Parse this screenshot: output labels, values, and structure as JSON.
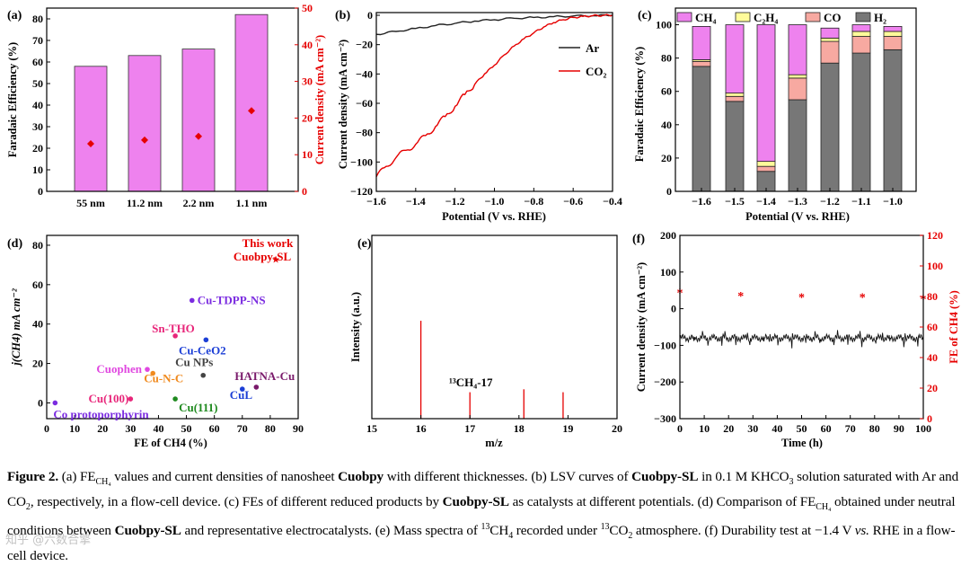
{
  "panel_labels": {
    "a": "(a)",
    "b": "(b)",
    "c": "(c)",
    "d": "(d)",
    "e": "(e)",
    "f": "(f)"
  },
  "chart_data": [
    {
      "id": "a",
      "type": "bar",
      "categories": [
        "55 nm",
        "11.2 nm",
        "2.2 nm",
        "1.1 nm"
      ],
      "series": [
        {
          "name": "Faradaic Efficiency (%)",
          "axis": "left",
          "values": [
            58,
            63,
            66,
            82
          ]
        },
        {
          "name": "Current density (mA cm^-2)",
          "axis": "right",
          "values": [
            13,
            14,
            15,
            22
          ]
        }
      ],
      "ylabel": "Faradaic Efficiency (%)",
      "y2label": "Current density (mA cm⁻²)",
      "ylim": [
        0,
        85
      ],
      "y2lim": [
        0,
        50
      ],
      "yticks": [
        "0",
        "10",
        "20",
        "30",
        "40",
        "50",
        "60",
        "70",
        "80"
      ],
      "y2ticks": [
        "0",
        "10",
        "20",
        "30",
        "40",
        "50"
      ],
      "colors": {
        "bar": "#ee82ee",
        "point": "#e60000",
        "right_axis": "#e60000"
      }
    },
    {
      "id": "b",
      "type": "line",
      "xlabel": "Potential (V vs. RHE)",
      "ylabel": "Current density (mA cm⁻²)",
      "xlim": [
        -1.6,
        -0.4
      ],
      "ylim": [
        -120,
        0
      ],
      "xticks": [
        "−1.6",
        "−1.4",
        "−1.2",
        "−1.0",
        "−0.8",
        "−0.6",
        "−0.4"
      ],
      "yticks": [
        "0",
        "−20",
        "−40",
        "−60",
        "−80",
        "−100",
        "−120"
      ],
      "series": [
        {
          "name": "Ar",
          "color": "#222222",
          "x": [
            -1.6,
            -1.5,
            -1.4,
            -1.3,
            -1.2,
            -1.1,
            -1.0,
            -0.9,
            -0.8,
            -0.7,
            -0.6,
            -0.5,
            -0.4
          ],
          "y": [
            -13,
            -11,
            -9,
            -7,
            -5.5,
            -4,
            -3,
            -2,
            -1.5,
            -1,
            -0.5,
            -0.3,
            0
          ]
        },
        {
          "name": "CO2",
          "color": "#e60000",
          "x": [
            -1.6,
            -1.55,
            -1.5,
            -1.45,
            -1.4,
            -1.35,
            -1.3,
            -1.25,
            -1.2,
            -1.15,
            -1.1,
            -1.05,
            -1.0,
            -0.95,
            -0.9,
            -0.85,
            -0.8,
            -0.75,
            -0.7,
            -0.65,
            -0.6,
            -0.55,
            -0.5,
            -0.45,
            -0.4
          ],
          "y": [
            -110,
            -103,
            -97,
            -92,
            -88,
            -82,
            -76,
            -69,
            -62,
            -54,
            -47,
            -40,
            -34,
            -27,
            -21,
            -16,
            -12,
            -8,
            -5,
            -3,
            -1.5,
            -0.8,
            -0.3,
            -0.1,
            0
          ]
        }
      ]
    },
    {
      "id": "c",
      "type": "bar",
      "stacked": true,
      "categories": [
        "−1.6",
        "−1.5",
        "−1.4",
        "−1.3",
        "−1.2",
        "−1.1",
        "−1.0"
      ],
      "xlabel": "Potential (V vs. RHE)",
      "ylabel": "Faradaic Efficiency (%)",
      "ylim": [
        0,
        110
      ],
      "yticks": [
        "0",
        "20",
        "40",
        "60",
        "80",
        "100"
      ],
      "legend": [
        "CH4",
        "C2H4",
        "CO",
        "H2"
      ],
      "series": [
        {
          "name": "H2",
          "color": "#777777",
          "values": [
            75,
            54,
            12,
            55,
            77,
            83,
            85
          ]
        },
        {
          "name": "CO",
          "color": "#f7a9a1",
          "values": [
            3,
            3,
            3,
            13,
            13,
            10,
            8
          ]
        },
        {
          "name": "C2H4",
          "color": "#fffb9a",
          "values": [
            1,
            2,
            3,
            2,
            2,
            3,
            3
          ]
        },
        {
          "name": "CH4",
          "color": "#ee82ee",
          "values": [
            20,
            41,
            82,
            30,
            6,
            4,
            3
          ]
        }
      ]
    },
    {
      "id": "d",
      "type": "scatter",
      "xlabel": "FE of CH4 (%)",
      "ylabel": "j(CH4) mA cm⁻²",
      "xlim": [
        0,
        90
      ],
      "ylim": [
        -8,
        85
      ],
      "xticks": [
        "0",
        "10",
        "20",
        "30",
        "40",
        "50",
        "60",
        "70",
        "80",
        "90"
      ],
      "yticks": [
        "0",
        "20",
        "40",
        "60",
        "80"
      ],
      "points": [
        {
          "label": "This work",
          "label2": "Cuobpy-SL",
          "x": 82,
          "y": 73,
          "color": "#e60000",
          "star": true
        },
        {
          "label": "Cu-TDPP-NS",
          "x": 52,
          "y": 52,
          "color": "#7b2ce0"
        },
        {
          "label": "Sn-THO",
          "x": 46,
          "y": 34,
          "color": "#e8267a"
        },
        {
          "label": "Cu-CeO2",
          "x": 57,
          "y": 32,
          "color": "#1c3fd6"
        },
        {
          "label": "Cuophen",
          "x": 36,
          "y": 17,
          "color": "#e048e0"
        },
        {
          "label": "Cu NPs",
          "x": 56,
          "y": 14,
          "color": "#444444"
        },
        {
          "label": "Cu-N-C",
          "x": 38,
          "y": 15,
          "color": "#f08a1e"
        },
        {
          "label": "HATNA-Cu",
          "x": 75,
          "y": 8,
          "color": "#7a1a6b"
        },
        {
          "label": "CuL",
          "x": 70,
          "y": 7,
          "color": "#1c3fd6"
        },
        {
          "label": "Cu(100)",
          "x": 30,
          "y": 2,
          "color": "#e8267a"
        },
        {
          "label": "Cu(111)",
          "x": 46,
          "y": 2,
          "color": "#1f8a1f"
        },
        {
          "label": "Co protoporphyrin",
          "x": 3,
          "y": 0,
          "color": "#7b2ce0"
        }
      ]
    },
    {
      "id": "e",
      "type": "bar",
      "xlabel": "m/z",
      "ylabel": "Intensity (a.u.)",
      "xlim": [
        15,
        20
      ],
      "xticks": [
        "15",
        "16",
        "17",
        "18",
        "19",
        "20"
      ],
      "x": [
        16,
        17,
        18.1,
        18.9
      ],
      "values": [
        100,
        27,
        30,
        27
      ],
      "annotation": "13CH4-17",
      "color": "#e60000"
    },
    {
      "id": "f",
      "type": "line",
      "xlabel": "Time (h)",
      "ylabel": "Current density (mA cm⁻²)",
      "y2label": "FE of CH4 (%)",
      "xlim": [
        0,
        100
      ],
      "ylim": [
        -300,
        200
      ],
      "y2lim": [
        0,
        120
      ],
      "xticks": [
        "0",
        "10",
        "20",
        "30",
        "40",
        "50",
        "60",
        "70",
        "80",
        "90",
        "100"
      ],
      "yticks": [
        "200",
        "100",
        "0",
        "−100",
        "−200",
        "−300"
      ],
      "y2ticks": [
        "0",
        "20",
        "40",
        "60",
        "80",
        "100",
        "120"
      ],
      "current_level": -80,
      "fe_points": {
        "x": [
          0,
          25,
          50,
          75,
          100
        ],
        "y": [
          82,
          80,
          79,
          79,
          78
        ]
      },
      "colors": {
        "line": "#111111",
        "fe": "#e60000"
      }
    }
  ],
  "caption": {
    "s1": "Figure 2.",
    "s2": " (a) FE",
    "s3": "CH₄",
    "s4": " values and current densities of nanosheet ",
    "s5": "Cuobpy",
    "s6": " with different thicknesses. (b) LSV curves of ",
    "s7": "Cuobpy-SL",
    "s8": " in 0.1 M KHCO",
    "s9": "3",
    "s10": " solution saturated with Ar and CO",
    "s11": "2",
    "s12": ", respectively, in a flow-cell device. (c) FEs of different reduced products by ",
    "s13": "Cuobpy-SL",
    "s14": " as catalysts at different potentials. (d) Comparison of FE",
    "s15": "CH₄",
    "s16": " obtained under neutral conditions between ",
    "s17": "Cuobpy-SL",
    "s18": " and representative electrocatalysts. (e) Mass spectra of ",
    "s19": "13",
    "s20": "CH",
    "s21": "4",
    "s22": " recorded under ",
    "s23": "13",
    "s24": "CO",
    "s25": "2",
    "s26": " atmosphere. (f) Durability test at −1.4 V ",
    "s27": "vs.",
    "s28": " RHE in a flow-cell device."
  },
  "watermark": "知乎 @六数合擎"
}
